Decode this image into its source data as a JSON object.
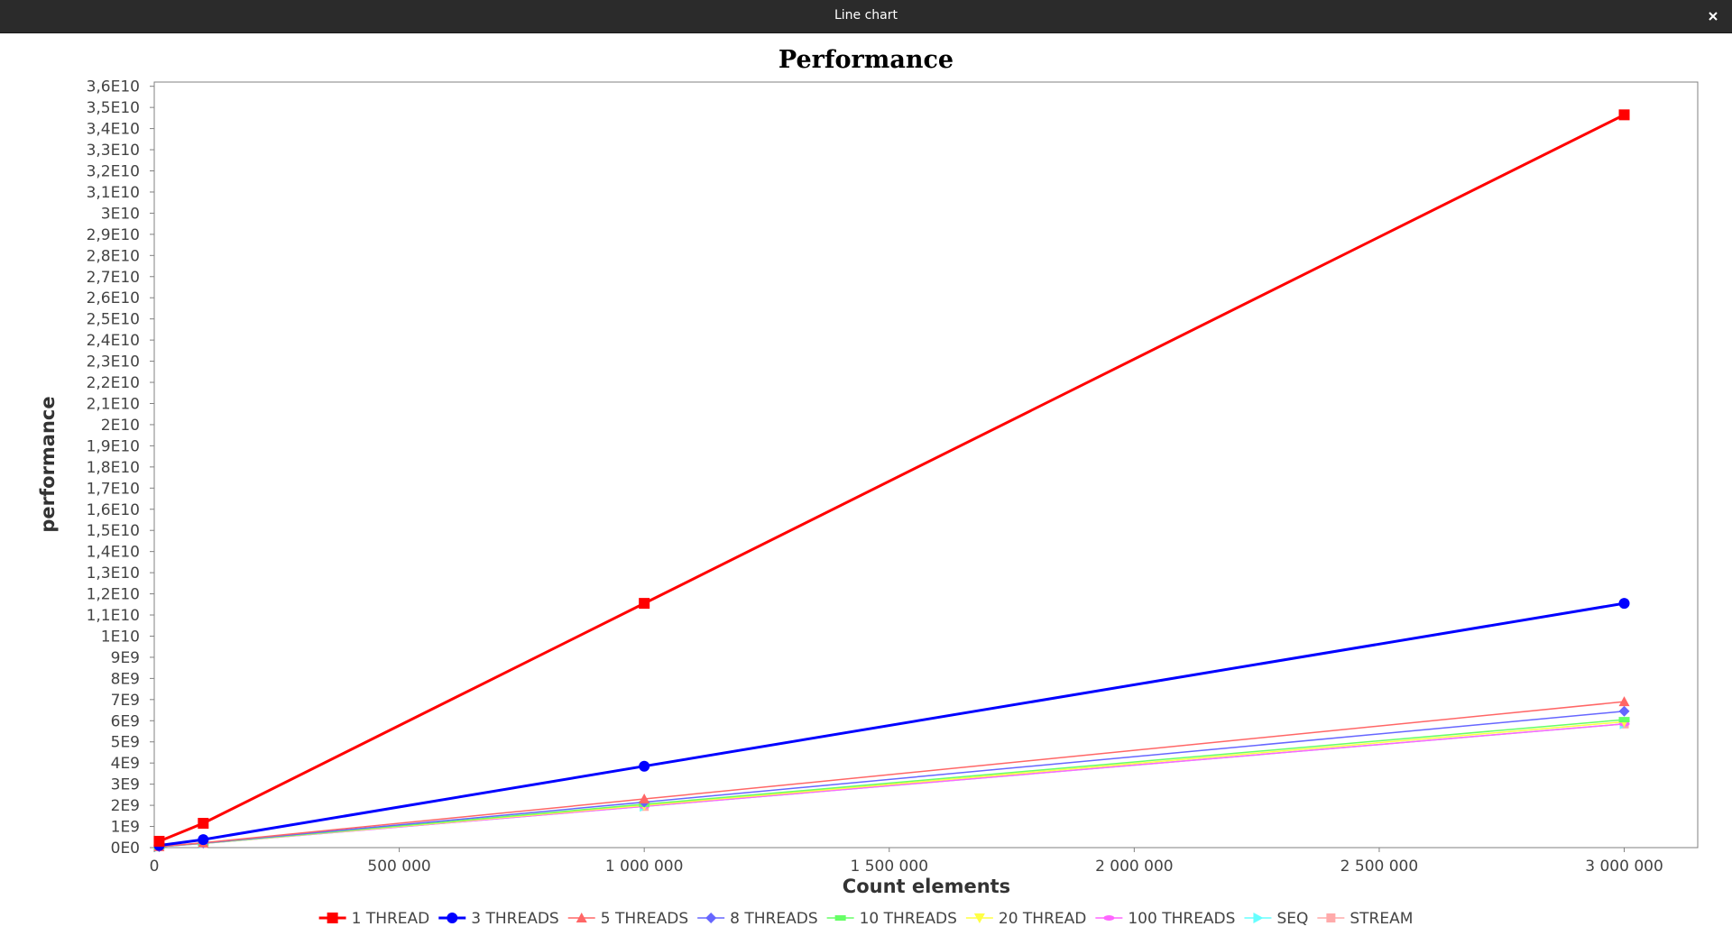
{
  "window": {
    "title": "Line chart",
    "close_icon": "close-icon"
  },
  "chart_data": {
    "type": "line",
    "title": "Performance",
    "xlabel": "Count elements",
    "ylabel": "performance",
    "xlim": [
      0,
      3150000
    ],
    "ylim": [
      0,
      36200000000
    ],
    "x_ticks": [
      0,
      500000,
      1000000,
      1500000,
      2000000,
      2500000,
      3000000
    ],
    "x_tick_labels": [
      "0",
      "500 000",
      "1 000 000",
      "1 500 000",
      "2 000 000",
      "2 500 000",
      "3 000 000"
    ],
    "y_ticks": [
      0,
      1000000000,
      2000000000,
      3000000000,
      4000000000,
      5000000000,
      6000000000,
      7000000000,
      8000000000,
      9000000000,
      10000000000,
      11000000000,
      12000000000,
      13000000000,
      14000000000,
      15000000000,
      16000000000,
      17000000000,
      18000000000,
      19000000000,
      20000000000,
      21000000000,
      22000000000,
      23000000000,
      24000000000,
      25000000000,
      26000000000,
      27000000000,
      28000000000,
      29000000000,
      30000000000,
      31000000000,
      32000000000,
      33000000000,
      34000000000,
      35000000000,
      36000000000
    ],
    "y_tick_labels": [
      "0E0",
      "1E9",
      "2E9",
      "3E9",
      "4E9",
      "5E9",
      "6E9",
      "7E9",
      "8E9",
      "9E9",
      "1E10",
      "1,1E10",
      "1,2E10",
      "1,3E10",
      "1,4E10",
      "1,5E10",
      "1,6E10",
      "1,7E10",
      "1,8E10",
      "1,9E10",
      "2E10",
      "2,1E10",
      "2,2E10",
      "2,3E10",
      "2,4E10",
      "2,5E10",
      "2,6E10",
      "2,7E10",
      "2,8E10",
      "2,9E10",
      "3E10",
      "3,1E10",
      "3,2E10",
      "3,3E10",
      "3,4E10",
      "3,5E10",
      "3,6E10"
    ],
    "grid": false,
    "legend_position": "bottom",
    "series": [
      {
        "name": "1 THREAD",
        "color": "#ff0000",
        "marker": "square",
        "thick": true,
        "x": [
          10000,
          100000,
          1000000,
          3000000
        ],
        "y": [
          300000000,
          1150000000,
          11550000000,
          34650000000
        ]
      },
      {
        "name": "3 THREADS",
        "color": "#0000ff",
        "marker": "circle",
        "thick": true,
        "x": [
          10000,
          100000,
          1000000,
          3000000
        ],
        "y": [
          100000000,
          380000000,
          3850000000,
          11550000000
        ]
      },
      {
        "name": "5 THREADS",
        "color": "#ff6666",
        "marker": "triangle-up",
        "thick": false,
        "x": [
          10000,
          100000,
          1000000,
          3000000
        ],
        "y": [
          50000000,
          230000000,
          2300000000,
          6900000000
        ]
      },
      {
        "name": "8 THREADS",
        "color": "#6666ff",
        "marker": "diamond",
        "thick": false,
        "x": [
          10000,
          100000,
          1000000,
          3000000
        ],
        "y": [
          45000000,
          215000000,
          2150000000,
          6450000000
        ]
      },
      {
        "name": "10 THREADS",
        "color": "#66ff66",
        "marker": "rect-h",
        "thick": false,
        "x": [
          10000,
          100000,
          1000000,
          3000000
        ],
        "y": [
          42000000,
          205000000,
          2050000000,
          6050000000
        ]
      },
      {
        "name": "20 THREAD",
        "color": "#ffff44",
        "marker": "triangle-down",
        "thick": false,
        "x": [
          10000,
          100000,
          1000000,
          3000000
        ],
        "y": [
          41000000,
          200000000,
          2000000000,
          5950000000
        ]
      },
      {
        "name": "100 THREADS",
        "color": "#ff66ff",
        "marker": "ellipse-h",
        "thick": false,
        "x": [
          10000,
          100000,
          1000000,
          3000000
        ],
        "y": [
          40000000,
          195000000,
          1950000000,
          5850000000
        ]
      },
      {
        "name": "SEQ",
        "color": "#66ffff",
        "marker": "triangle-right",
        "thick": false,
        "x": [
          10000,
          100000,
          1000000,
          3000000
        ],
        "y": [
          40000000,
          195000000,
          1950000000,
          5850000000
        ]
      },
      {
        "name": "STREAM",
        "color": "#ffaaaa",
        "marker": "square-small",
        "thick": false,
        "x": [
          10000,
          100000,
          1000000,
          3000000
        ],
        "y": [
          40000000,
          195000000,
          1950000000,
          5850000000
        ]
      }
    ]
  }
}
